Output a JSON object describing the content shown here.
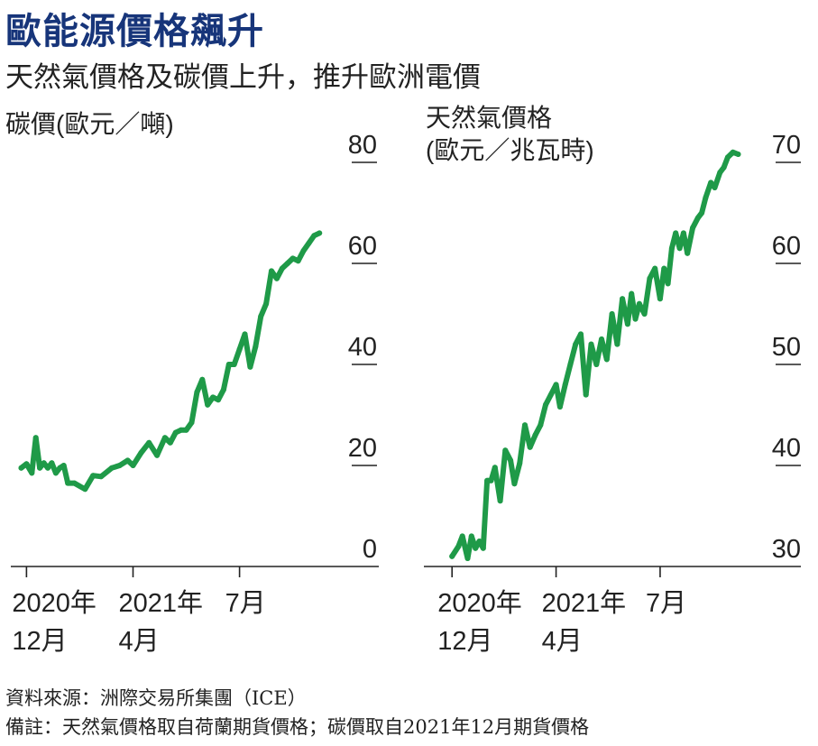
{
  "title": "歐能源價格飆升",
  "subtitle": "天然氣價格及碳價上升，推升歐洲電價",
  "footer": {
    "source": "資料來源：洲際交易所集團（ICE）",
    "note": "備註：天然氣價格取自荷蘭期貨價格；碳價取自2021年12月期貨價格"
  },
  "colors": {
    "title": "#17357a",
    "line": "#1f9a48",
    "axis": "#222222"
  },
  "chart_data": [
    {
      "type": "line",
      "title_lines": [
        "碳價(歐元／噸)"
      ],
      "ylim": [
        0,
        80
      ],
      "yticks": [
        0,
        20,
        40,
        60,
        80
      ],
      "xlim": [
        -0.25,
        11.4
      ],
      "xtick_positions": [
        0,
        4,
        8
      ],
      "xtick_labels": [
        [
          "2020年",
          "12月"
        ],
        [
          "2021年",
          "4月"
        ],
        [
          "7月",
          ""
        ]
      ],
      "series": [
        {
          "name": "碳價",
          "x": [
            -0.2,
            0.0,
            0.2,
            0.35,
            0.5,
            0.65,
            0.8,
            0.95,
            1.1,
            1.25,
            1.4,
            1.55,
            1.8,
            2.2,
            2.5,
            2.8,
            3.2,
            3.5,
            3.8,
            4.0,
            4.3,
            4.6,
            4.9,
            5.2,
            5.4,
            5.6,
            5.8,
            6.0,
            6.2,
            6.4,
            6.6,
            6.8,
            7.0,
            7.2,
            7.4,
            7.6,
            7.8,
            8.0,
            8.2,
            8.4,
            8.6,
            8.8,
            9.0,
            9.2,
            9.4,
            9.6,
            9.8,
            10.0,
            10.2,
            10.4,
            10.6,
            10.8,
            11.0
          ],
          "values": [
            19.5,
            20.3,
            18.5,
            25.5,
            19.5,
            20.5,
            19.5,
            20.5,
            18.5,
            19.5,
            20.0,
            16.5,
            16.5,
            15.3,
            18.0,
            17.8,
            19.5,
            20.0,
            21.0,
            20.0,
            22.5,
            24.5,
            22.0,
            25.5,
            24.5,
            26.5,
            27.0,
            27.0,
            28.5,
            34.5,
            37.0,
            32.0,
            33.5,
            33.0,
            35.0,
            40.0,
            40.0,
            43.0,
            46.0,
            39.5,
            43.5,
            49.5,
            52.0,
            58.5,
            57.0,
            59.0,
            60.0,
            61.0,
            60.5,
            62.5,
            64.0,
            65.5,
            66.0
          ]
        }
      ]
    },
    {
      "type": "line",
      "title_lines": [
        "天然氣價格",
        "(歐元／兆瓦時)"
      ],
      "ylim": [
        30,
        70
      ],
      "yticks": [
        30,
        40,
        50,
        60,
        70
      ],
      "xlim": [
        -0.25,
        11.4
      ],
      "xtick_positions": [
        0,
        4,
        8
      ],
      "xtick_labels": [
        [
          "2020年",
          "12月"
        ],
        [
          "2021年",
          "4月"
        ],
        [
          "7月",
          ""
        ]
      ],
      "series": [
        {
          "name": "天然氣價格",
          "x": [
            0.0,
            0.25,
            0.4,
            0.6,
            0.75,
            0.9,
            1.05,
            1.2,
            1.35,
            1.5,
            1.65,
            1.85,
            2.05,
            2.25,
            2.4,
            2.6,
            2.8,
            3.0,
            3.2,
            3.4,
            3.6,
            3.8,
            4.0,
            4.15,
            4.35,
            4.55,
            4.75,
            4.95,
            5.15,
            5.35,
            5.55,
            5.75,
            5.95,
            6.15,
            6.35,
            6.55,
            6.75,
            6.9,
            7.05,
            7.2,
            7.4,
            7.6,
            7.8,
            8.0,
            8.15,
            8.3,
            8.45,
            8.6,
            8.75,
            8.9,
            9.05,
            9.25,
            9.45,
            9.6,
            9.75,
            9.95,
            10.1,
            10.3,
            10.45,
            10.6,
            10.8,
            11.0
          ],
          "values": [
            31.0,
            32.0,
            33.0,
            30.8,
            33.0,
            31.8,
            32.5,
            31.8,
            38.5,
            38.5,
            39.8,
            36.5,
            41.5,
            40.5,
            38.2,
            40.2,
            44.0,
            41.8,
            43.0,
            44.0,
            46.0,
            47.0,
            48.0,
            45.8,
            48.0,
            50.0,
            52.0,
            53.0,
            47.0,
            52.0,
            50.0,
            52.5,
            50.5,
            55.0,
            52.0,
            56.5,
            54.0,
            57.0,
            54.5,
            56.0,
            55.0,
            58.5,
            59.5,
            56.5,
            59.5,
            58.0,
            61.5,
            63.0,
            61.5,
            63.0,
            61.0,
            63.5,
            64.5,
            65.0,
            66.5,
            68.0,
            67.5,
            69.0,
            69.5,
            70.5,
            71.0,
            70.8
          ]
        }
      ]
    }
  ]
}
